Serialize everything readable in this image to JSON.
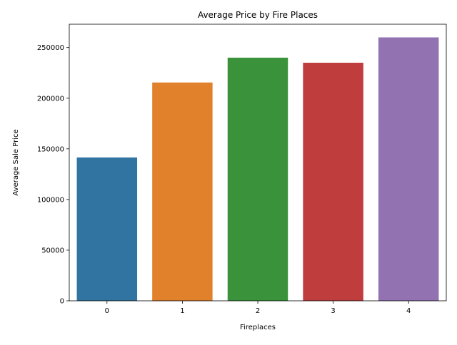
{
  "chart_data": {
    "type": "bar",
    "title": "Average Price by Fire Places",
    "xlabel": "Fireplaces",
    "ylabel": "Average Sale Price",
    "categories": [
      "0",
      "1",
      "2",
      "3",
      "4"
    ],
    "values": [
      141500,
      215500,
      240000,
      235000,
      260000
    ],
    "colors": [
      "#3274a1",
      "#e1812c",
      "#3a923a",
      "#c03d3e",
      "#9372b2"
    ],
    "ylim": [
      0,
      273000
    ],
    "yticks": [
      0,
      50000,
      100000,
      150000,
      200000,
      250000
    ],
    "grid": false,
    "legend": "none"
  }
}
